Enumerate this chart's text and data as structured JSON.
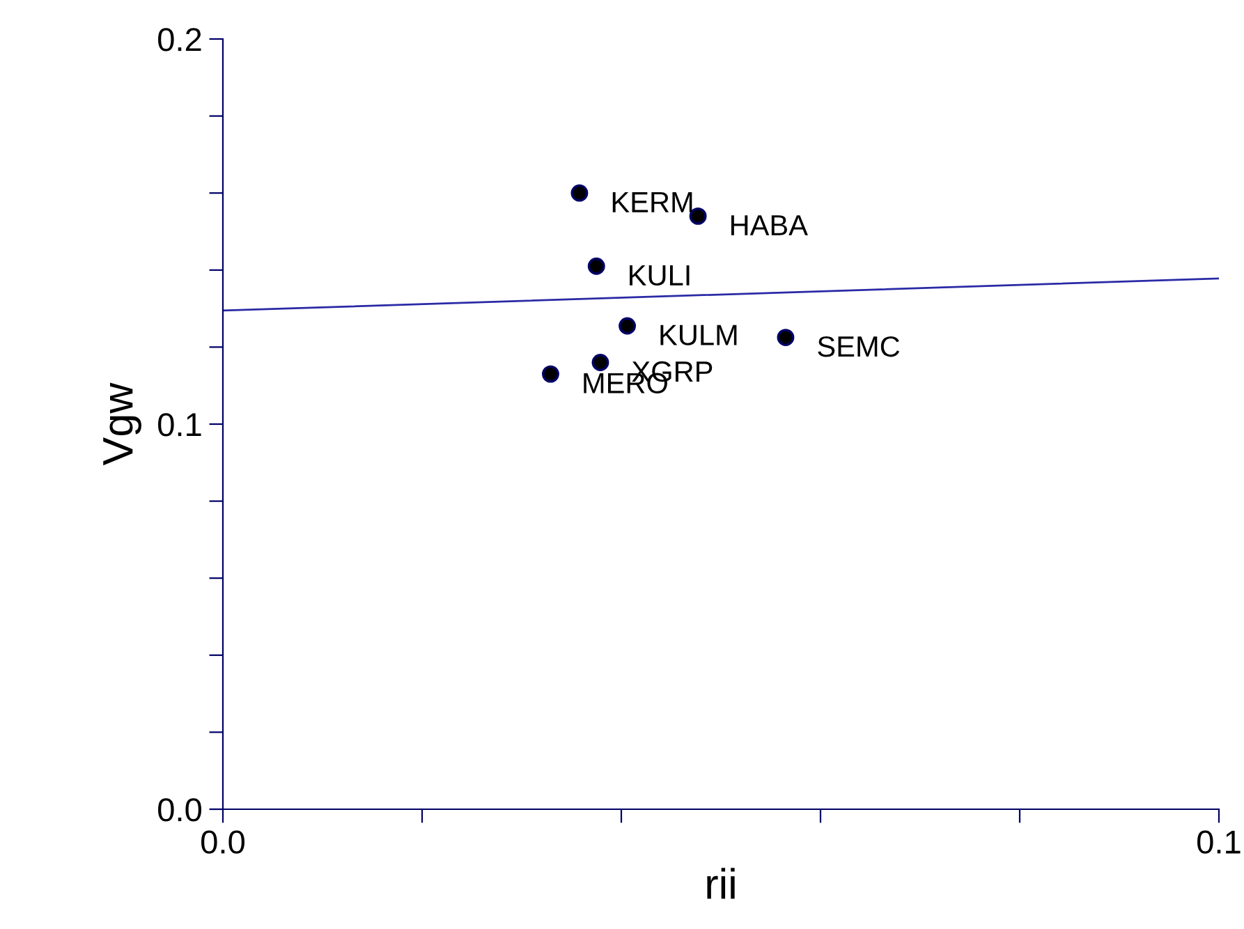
{
  "chart_data": {
    "type": "scatter",
    "xlabel": "rii",
    "ylabel": "Vgw",
    "xlim": [
      0,
      0.1
    ],
    "ylim": [
      0,
      0.2
    ],
    "xticks": [
      {
        "value": 0,
        "label": "0.0"
      },
      {
        "value": 0.02,
        "label": null
      },
      {
        "value": 0.04,
        "label": null
      },
      {
        "value": 0.06,
        "label": null
      },
      {
        "value": 0.08,
        "label": null
      },
      {
        "value": 0.1,
        "label": "0.1"
      }
    ],
    "yticks": [
      {
        "value": 0,
        "label": "0.0"
      },
      {
        "value": 0.02,
        "label": null
      },
      {
        "value": 0.04,
        "label": null
      },
      {
        "value": 0.06,
        "label": null
      },
      {
        "value": 0.08,
        "label": null
      },
      {
        "value": 0.1,
        "label": "0.1"
      },
      {
        "value": 0.12,
        "label": null
      },
      {
        "value": 0.14,
        "label": null
      },
      {
        "value": 0.16,
        "label": null
      },
      {
        "value": 0.18,
        "label": null
      },
      {
        "value": 0.2,
        "label": "0.2"
      }
    ],
    "grid": false,
    "legend": false,
    "series": [
      {
        "marker": "circle",
        "color": "#000000",
        "x": [
          0.0358,
          0.0477,
          0.0375,
          0.0406,
          0.0565,
          0.0379,
          0.0329
        ],
        "values": [
          0.16,
          0.154,
          0.141,
          0.1255,
          0.1225,
          0.116,
          0.113
        ]
      },
      {
        "type": "line",
        "marker": "none",
        "color": "#2a2aa6",
        "x": [
          0,
          0.1
        ],
        "values": [
          0.1295,
          0.1378
        ]
      }
    ],
    "annotations": [
      {
        "text": "KERM",
        "x": 0.0358,
        "y": 0.16
      },
      {
        "text": "HABA",
        "x": 0.0477,
        "y": 0.154
      },
      {
        "text": "KULI",
        "x": 0.0375,
        "y": 0.141
      },
      {
        "text": "KULM",
        "x": 0.0406,
        "y": 0.1255
      },
      {
        "text": "SEMC",
        "x": 0.0565,
        "y": 0.1225
      },
      {
        "text": "XGRP",
        "x": 0.0379,
        "y": 0.116
      },
      {
        "text": "MERO",
        "x": 0.0329,
        "y": 0.113
      }
    ]
  }
}
